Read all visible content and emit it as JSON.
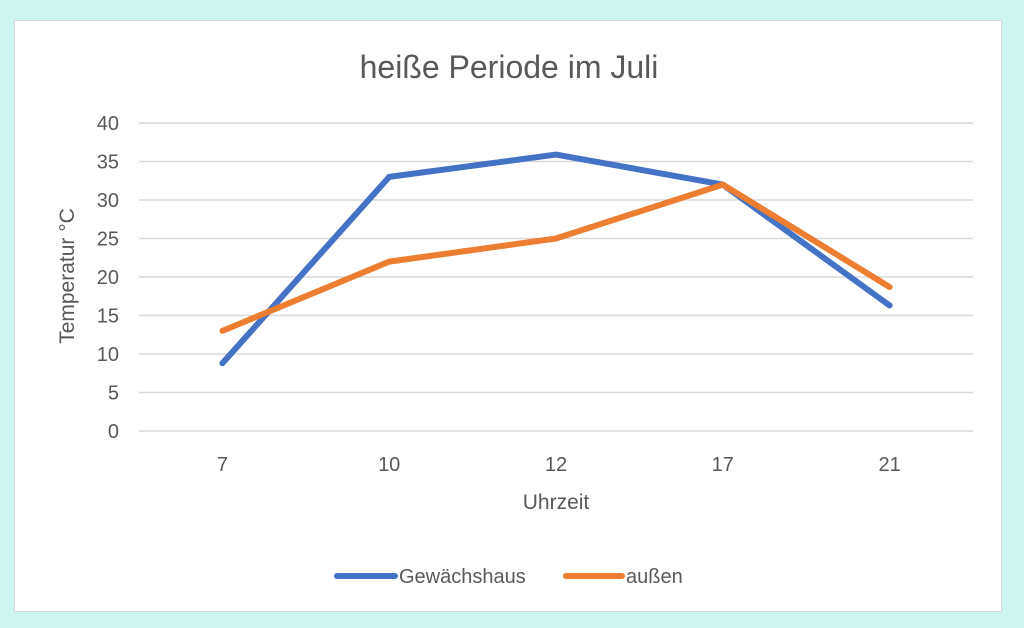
{
  "chart_data": {
    "type": "line",
    "title": "heiße Periode im Juli",
    "xlabel": "Uhrzeit",
    "ylabel": "Temperatur °C",
    "categories": [
      "7",
      "10",
      "12",
      "17",
      "21"
    ],
    "ylim": [
      0,
      40
    ],
    "yticks": [
      0,
      5,
      10,
      15,
      20,
      25,
      30,
      35,
      40
    ],
    "grid": true,
    "legend": "bottom",
    "series": [
      {
        "name": "Gewächshaus",
        "values": [
          8.8,
          33,
          35.9,
          32,
          16.3
        ],
        "color": "#4472c4"
      },
      {
        "name": "außen",
        "values": [
          13,
          22,
          25,
          32,
          18.7
        ],
        "color": "#ed7d31"
      }
    ]
  }
}
